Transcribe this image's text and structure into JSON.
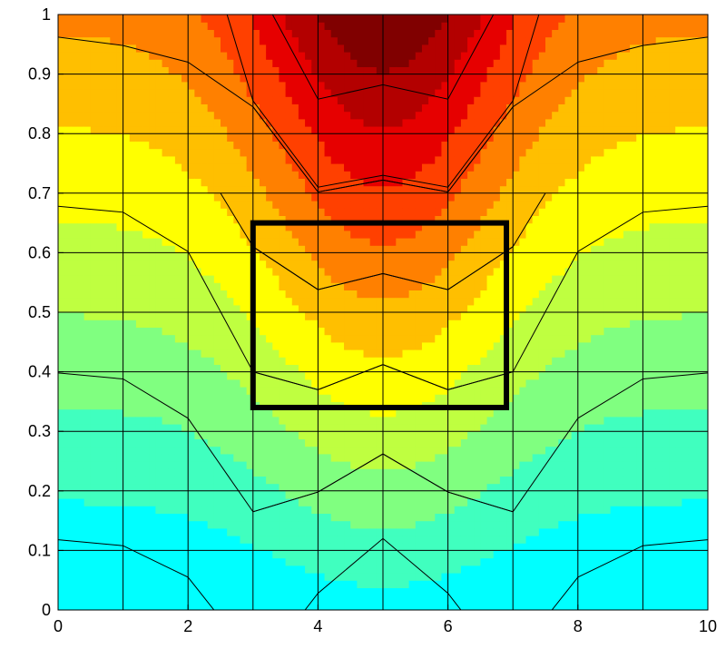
{
  "chart_data": {
    "type": "heatmap",
    "subtype": "filled-contour",
    "title": "",
    "xlabel": "",
    "ylabel": "",
    "xlim": [
      0,
      10
    ],
    "ylim": [
      0,
      1
    ],
    "grid": true,
    "x_ticks": [
      "0",
      "2",
      "4",
      "6",
      "8",
      "10"
    ],
    "y_ticks": [
      "0",
      "0.1",
      "0.2",
      "0.3",
      "0.4",
      "0.5",
      "0.6",
      "0.7",
      "0.8",
      "0.9",
      "1"
    ],
    "x_grid": [
      0,
      1,
      2,
      3,
      4,
      5,
      6,
      7,
      8,
      9,
      10
    ],
    "y_grid": [
      0,
      0.1,
      0.2,
      0.3,
      0.4,
      0.5,
      0.6,
      0.7,
      0.8,
      0.9,
      1
    ],
    "colormap": [
      "#00ffff",
      "#40ffbf",
      "#80ff80",
      "#bfff40",
      "#ffff00",
      "#ffbf00",
      "#ff8000",
      "#ff4000",
      "#e60000",
      "#b30000",
      "#800000"
    ],
    "levels": [
      "#00ffff",
      "#40ffbf",
      "#80ff80",
      "#bfff40",
      "#ffff00",
      "#ffbf00",
      "#ff8000",
      "#ff4000",
      "#e60000",
      "#b30000",
      "#800000"
    ],
    "contour_lines": [
      {
        "x": [
          0,
          1,
          2,
          2.4
        ],
        "y": [
          0.118,
          0.108,
          0.055,
          0
        ]
      },
      {
        "x": [
          3.8,
          4,
          5,
          6,
          6.2
        ],
        "y": [
          0,
          0.028,
          0.12,
          0.028,
          0
        ]
      },
      {
        "x": [
          7.6,
          8,
          9,
          10
        ],
        "y": [
          0,
          0.055,
          0.108,
          0.118
        ]
      },
      {
        "x": [
          3,
          4,
          5,
          6,
          7
        ],
        "y": [
          0.165,
          0.198,
          0.262,
          0.198,
          0.165
        ]
      },
      {
        "x": [
          0,
          1,
          2,
          3,
          4,
          5,
          6,
          7,
          8,
          9,
          10
        ],
        "y": [
          0.398,
          0.388,
          0.322,
          0.165,
          0.198,
          0.262,
          0.198,
          0.165,
          0.322,
          0.388,
          0.398
        ]
      },
      {
        "x": [
          3,
          4,
          5,
          6,
          7
        ],
        "y": [
          0.4,
          0.37,
          0.412,
          0.37,
          0.4
        ]
      },
      {
        "x": [
          0,
          1,
          2,
          3,
          4,
          5,
          6,
          7,
          8,
          9,
          10
        ],
        "y": [
          0.678,
          0.668,
          0.602,
          0.4,
          0.37,
          0.412,
          0.37,
          0.4,
          0.602,
          0.668,
          0.678
        ]
      },
      {
        "x": [
          3,
          4,
          5,
          6,
          7
        ],
        "y": [
          0.61,
          0.538,
          0.565,
          0.538,
          0.61
        ]
      },
      {
        "x": [
          2.5,
          3,
          4,
          5,
          6,
          7,
          7.5
        ],
        "y": [
          0.7,
          0.61,
          0.538,
          0.565,
          0.538,
          0.61,
          0.7
        ]
      },
      {
        "x": [
          3,
          4,
          5,
          6,
          7
        ],
        "y": [
          0.845,
          0.702,
          0.722,
          0.702,
          0.845
        ]
      },
      {
        "x": [
          0,
          1,
          2,
          3,
          4,
          5,
          6,
          7,
          8,
          9,
          10
        ],
        "y": [
          0.962,
          0.948,
          0.92,
          0.845,
          0.702,
          0.722,
          0.702,
          0.845,
          0.92,
          0.948,
          0.962
        ]
      },
      {
        "x": [
          2.6,
          3,
          4,
          5,
          6,
          7,
          7.4
        ],
        "y": [
          1,
          0.855,
          0.71,
          0.73,
          0.71,
          0.855,
          1
        ]
      },
      {
        "x": [
          3.3,
          4,
          5,
          6,
          6.7
        ],
        "y": [
          1,
          0.858,
          0.882,
          0.858,
          1
        ]
      }
    ],
    "annotations": [
      {
        "type": "rectangle",
        "x": [
          3,
          6.9
        ],
        "y": [
          0.34,
          0.65
        ],
        "stroke": "#000000"
      }
    ],
    "contour_fill_note": "Filled contour of a field symmetric about x=5, increasing with y and toward the center; lowest band at bottom (cyan), highest at top center (dark red)."
  }
}
